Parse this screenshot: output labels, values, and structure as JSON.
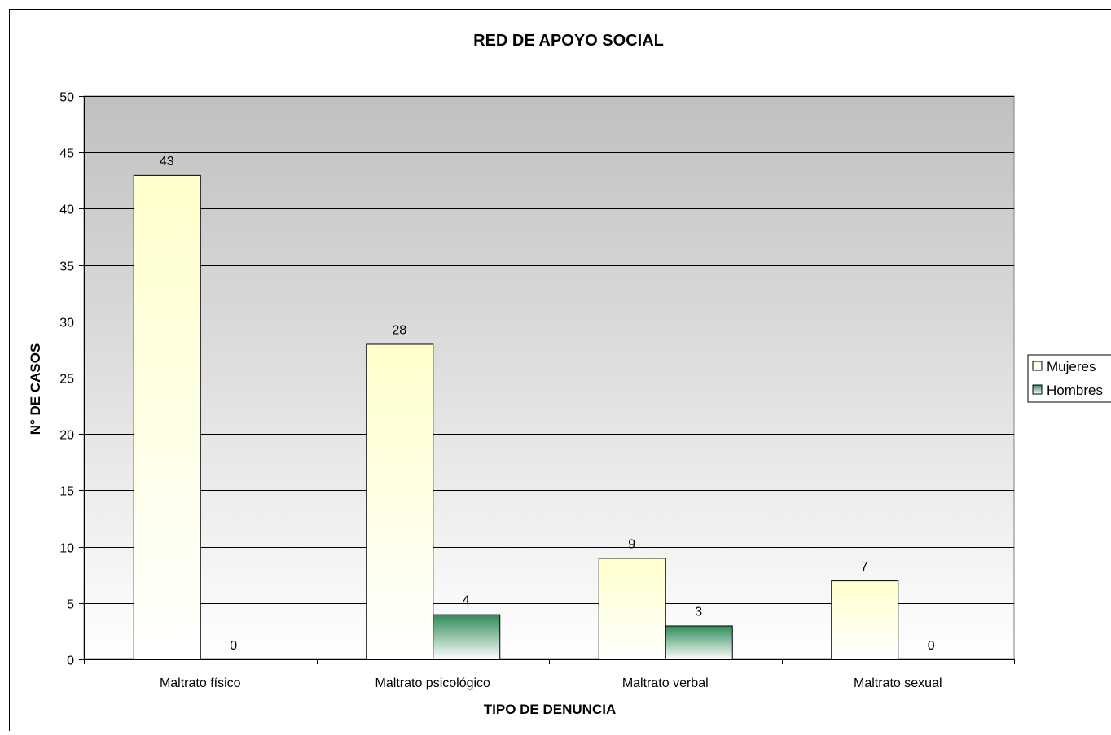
{
  "chart_data": {
    "type": "bar",
    "title": "RED DE APOYO SOCIAL",
    "xlabel": "TIPO DE DENUNCIA",
    "ylabel": "N° DE CASOS",
    "categories": [
      "Maltrato físico",
      "Maltrato psicológico",
      "Maltrato verbal",
      "Maltrato sexual"
    ],
    "series": [
      {
        "name": "Mujeres",
        "values": [
          43,
          28,
          9,
          7
        ],
        "color": "#ffffcc"
      },
      {
        "name": "Hombres",
        "values": [
          0,
          4,
          3,
          0
        ],
        "color": "#2e8b57"
      }
    ],
    "ylim": [
      0,
      50
    ],
    "yticks": [
      0,
      5,
      10,
      15,
      20,
      25,
      30,
      35,
      40,
      45,
      50
    ],
    "grid": true,
    "legend": "right",
    "data_labels": true,
    "plot_background": "gradient gray to white"
  }
}
